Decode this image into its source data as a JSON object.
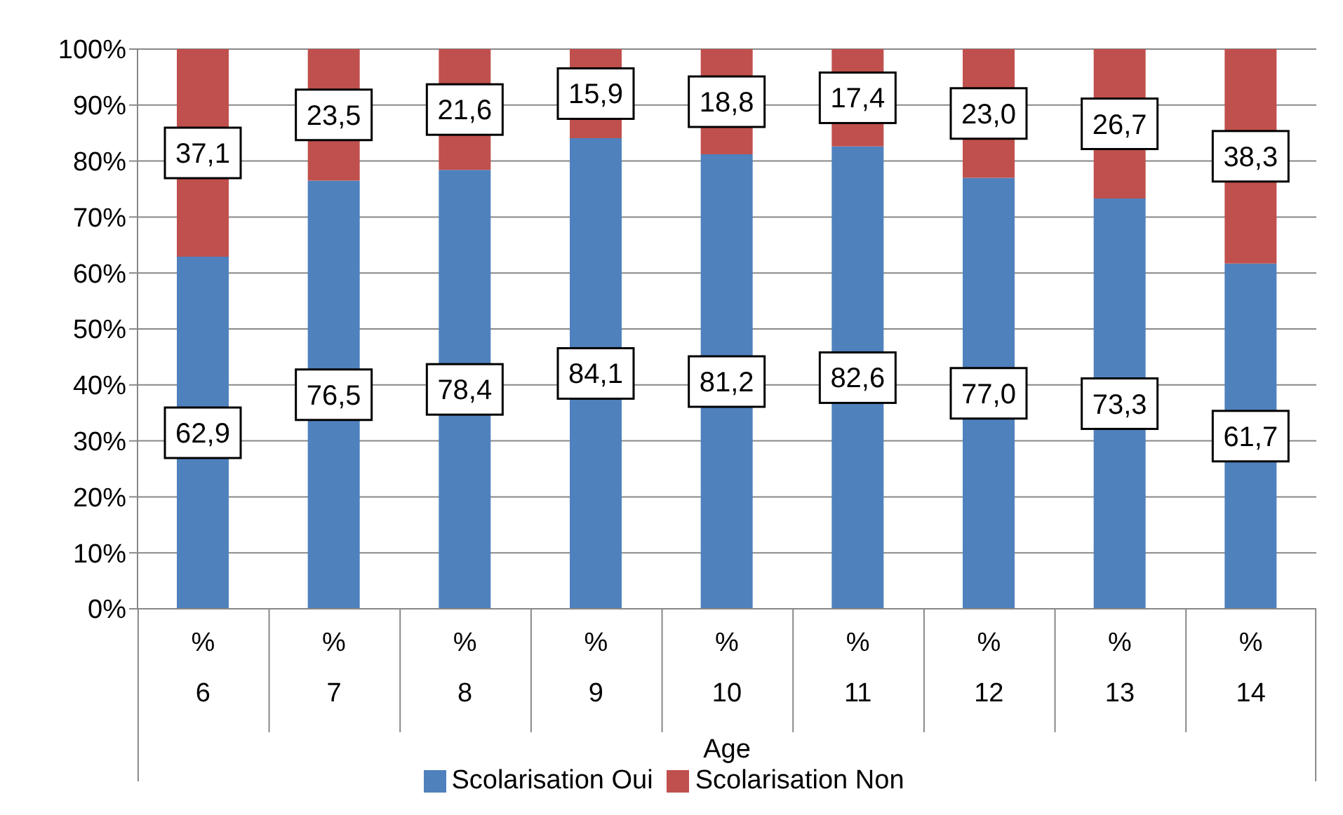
{
  "chart_data": {
    "type": "bar",
    "stacked": true,
    "xlabel": "Age",
    "categories": [
      "%\n6",
      "%\n7",
      "%\n8",
      "%\n9",
      "%\n10",
      "%\n11",
      "%\n12",
      "%\n13",
      "%\n14"
    ],
    "series": [
      {
        "name": "Scolarisation Oui",
        "color": "#4f81bd",
        "values": [
          62.9,
          76.5,
          78.4,
          84.1,
          81.2,
          82.6,
          77.0,
          73.3,
          61.7
        ],
        "value_labels": [
          "62,9",
          "76,5",
          "78,4",
          "84,1",
          "81,2",
          "82,6",
          "77,0",
          "73,3",
          "61,7"
        ]
      },
      {
        "name": "Scolarisation Non",
        "color": "#c0504d",
        "values": [
          37.1,
          23.5,
          21.6,
          15.9,
          18.8,
          17.4,
          23.0,
          26.7,
          38.3
        ],
        "value_labels": [
          "37,1",
          "23,5",
          "21,6",
          "15,9",
          "18,8",
          "17,4",
          "23,0",
          "26,7",
          "38,3"
        ]
      }
    ],
    "ylim": [
      0,
      100
    ],
    "yticks": [
      {
        "value": 0,
        "label": "0%"
      },
      {
        "value": 10,
        "label": "10%"
      },
      {
        "value": 20,
        "label": "20%"
      },
      {
        "value": 30,
        "label": "30%"
      },
      {
        "value": 40,
        "label": "40%"
      },
      {
        "value": 50,
        "label": "50%"
      },
      {
        "value": 60,
        "label": "60%"
      },
      {
        "value": 70,
        "label": "70%"
      },
      {
        "value": 80,
        "label": "80%"
      },
      {
        "value": 90,
        "label": "90%"
      },
      {
        "value": 100,
        "label": "100%"
      }
    ],
    "grid": "y",
    "legend": "bottom"
  }
}
